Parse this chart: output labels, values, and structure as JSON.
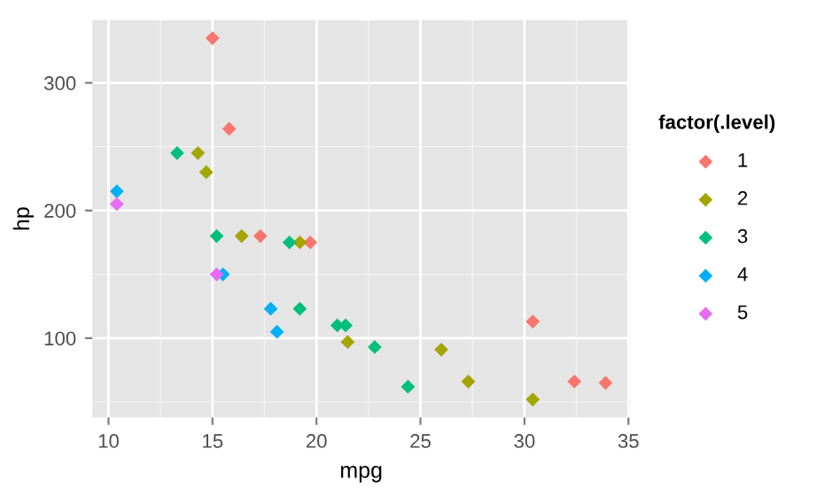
{
  "chart_data": {
    "type": "scatter",
    "xlabel": "mpg",
    "ylabel": "hp",
    "legend_title": "factor(.level)",
    "legend": "right",
    "marker": "diamond",
    "grid": true,
    "xlim": [
      9.225,
      35.075
    ],
    "ylim": [
      37.85,
      349.15
    ],
    "xticks": [
      10,
      15,
      20,
      25,
      30,
      35
    ],
    "yticks": [
      100,
      200,
      300
    ],
    "series": [
      {
        "name": "1",
        "color": "#f8766d",
        "x": [
          15.0,
          15.8,
          17.3,
          19.7,
          30.4,
          32.4,
          33.9
        ],
        "values": [
          335,
          264,
          180,
          175,
          113,
          66,
          65
        ]
      },
      {
        "name": "2",
        "color": "#a3a500",
        "x": [
          14.3,
          14.7,
          16.4,
          19.2,
          21.5,
          26.0,
          27.3,
          30.4
        ],
        "values": [
          245,
          230,
          180,
          175,
          97,
          91,
          66,
          52
        ]
      },
      {
        "name": "3",
        "color": "#00bf7d",
        "x": [
          13.3,
          15.2,
          18.7,
          19.2,
          21.0,
          21.4,
          22.8,
          24.4
        ],
        "values": [
          245,
          180,
          175,
          123,
          110,
          110,
          93,
          62
        ]
      },
      {
        "name": "4",
        "color": "#00b0f6",
        "x": [
          10.4,
          15.5,
          17.8,
          18.1
        ],
        "values": [
          215,
          150,
          123,
          105
        ]
      },
      {
        "name": "5",
        "color": "#e76bf3",
        "x": [
          10.4,
          15.2
        ],
        "values": [
          205,
          150
        ]
      }
    ]
  }
}
